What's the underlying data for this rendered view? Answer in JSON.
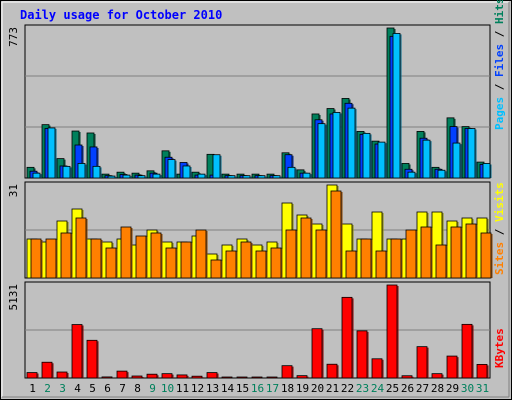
{
  "chart_data": [
    {
      "type": "bar",
      "title": "Daily usage for October 2010",
      "panel": "hits-files-pages",
      "ymax_label": "773",
      "ylim": [
        0,
        773
      ],
      "categories": [
        "1",
        "2",
        "3",
        "4",
        "5",
        "6",
        "7",
        "8",
        "9",
        "10",
        "11",
        "12",
        "13",
        "14",
        "15",
        "16",
        "17",
        "18",
        "19",
        "20",
        "21",
        "22",
        "23",
        "24",
        "25",
        "26",
        "27",
        "28",
        "29",
        "30",
        "31"
      ],
      "weekend_days": [
        "2",
        "3",
        "9",
        "10",
        "16",
        "17",
        "23",
        "24",
        "30",
        "31"
      ],
      "series": [
        {
          "name": "Hits",
          "color": "#00805c",
          "values": [
            55,
            275,
            100,
            242,
            232,
            20,
            30,
            25,
            37,
            140,
            20,
            30,
            122,
            20,
            20,
            20,
            20,
            130,
            42,
            330,
            358,
            410,
            240,
            190,
            773,
            75,
            240,
            55,
            310,
            265,
            82
          ]
        },
        {
          "name": "Files",
          "color": "#0040ff",
          "values": [
            35,
            255,
            62,
            170,
            160,
            12,
            18,
            15,
            25,
            107,
            80,
            15,
            15,
            12,
            12,
            12,
            12,
            120,
            25,
            300,
            330,
            385,
            225,
            175,
            730,
            45,
            205,
            45,
            265,
            255,
            70
          ]
        },
        {
          "name": "Pages",
          "color": "#00c0ff",
          "values": [
            25,
            258,
            60,
            75,
            60,
            10,
            15,
            12,
            20,
            95,
            62,
            20,
            120,
            12,
            12,
            12,
            12,
            55,
            25,
            280,
            338,
            360,
            230,
            185,
            745,
            30,
            195,
            40,
            180,
            255,
            75
          ]
        }
      ],
      "legend": [
        "Pages",
        "Files",
        "Hits"
      ]
    },
    {
      "type": "bar",
      "panel": "visits-sites",
      "ymax_label": "31",
      "ylim": [
        0,
        31
      ],
      "categories": [
        "1",
        "2",
        "3",
        "4",
        "5",
        "6",
        "7",
        "8",
        "9",
        "10",
        "11",
        "12",
        "13",
        "14",
        "15",
        "16",
        "17",
        "18",
        "19",
        "20",
        "21",
        "22",
        "23",
        "24",
        "25",
        "26",
        "27",
        "28",
        "29",
        "30",
        "31"
      ],
      "series": [
        {
          "name": "Visits",
          "color": "#ffff00",
          "values": [
            13,
            12,
            19,
            23,
            13,
            12,
            13,
            11,
            16,
            12,
            12,
            14,
            8,
            11,
            13,
            11,
            12,
            25,
            21,
            18,
            31,
            18,
            13,
            22,
            13,
            13,
            22,
            22,
            19,
            20,
            20
          ]
        },
        {
          "name": "Sites",
          "color": "#ff8000",
          "values": [
            13,
            13,
            15,
            20,
            13,
            10,
            17,
            14,
            15,
            10,
            12,
            16,
            6,
            9,
            12,
            9,
            10,
            16,
            20,
            16,
            29,
            9,
            13,
            9,
            13,
            16,
            17,
            11,
            17,
            18,
            15
          ]
        }
      ],
      "legend": [
        "Sites",
        "Visits"
      ]
    },
    {
      "type": "bar",
      "panel": "kbytes",
      "ymax_label": "5131",
      "ylim": [
        0,
        5131
      ],
      "categories": [
        "1",
        "2",
        "3",
        "4",
        "5",
        "6",
        "7",
        "8",
        "9",
        "10",
        "11",
        "12",
        "13",
        "14",
        "15",
        "16",
        "17",
        "18",
        "19",
        "20",
        "21",
        "22",
        "23",
        "24",
        "25",
        "26",
        "27",
        "28",
        "29",
        "30",
        "31"
      ],
      "series": [
        {
          "name": "KBytes",
          "color": "#ff0000",
          "values": [
            300,
            870,
            330,
            2950,
            2080,
            60,
            380,
            110,
            210,
            240,
            170,
            100,
            300,
            40,
            40,
            40,
            40,
            680,
            130,
            2720,
            760,
            4450,
            2600,
            1060,
            5131,
            125,
            1730,
            240,
            1210,
            2960,
            750
          ]
        }
      ],
      "legend": [
        "KBytes"
      ]
    }
  ]
}
